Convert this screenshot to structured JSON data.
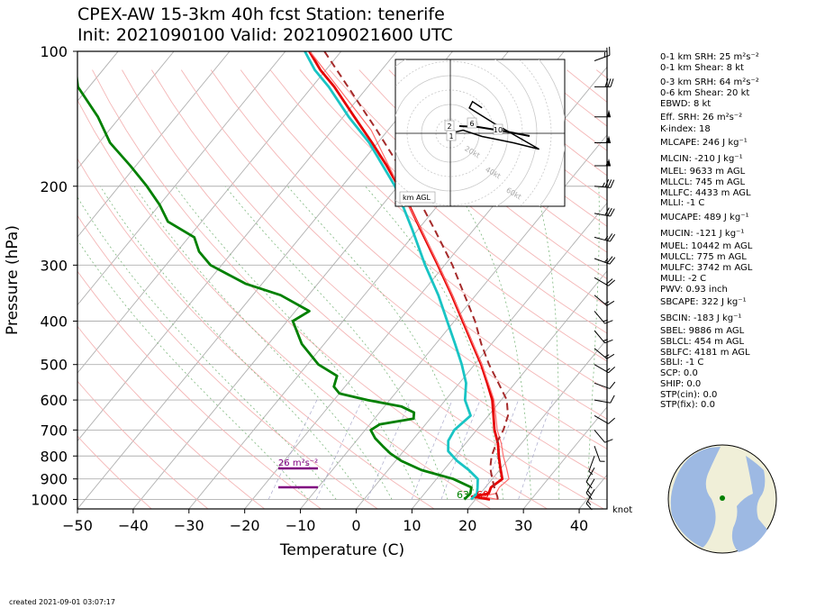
{
  "title_line1": "CPEX-AW 15-3km  40h fcst  Station: tenerife",
  "title_line2": "Init: 2021090100  Valid: 2021090216​00 UTC",
  "created": "created 2021-09-01 03:07:17",
  "chart_data": {
    "type": "line",
    "subtype": "skew-T log-P",
    "xlabel": "Temperature (C)",
    "ylabel": "Pressure (hPa)",
    "xlim": [
      -50,
      45
    ],
    "ylim": [
      1050,
      100
    ],
    "y_scale": "log",
    "x_ticks": [
      "−50",
      "−40",
      "−30",
      "−20",
      "−10",
      "0",
      "10",
      "20",
      "30",
      "40"
    ],
    "y_ticks": [
      "100",
      "200",
      "300",
      "400",
      "500",
      "600",
      "700",
      "800",
      "900",
      "1000"
    ],
    "x_tick_values": [
      -50,
      -40,
      -30,
      -20,
      -10,
      0,
      10,
      20,
      30,
      40
    ],
    "y_tick_values": [
      100,
      200,
      300,
      400,
      500,
      600,
      700,
      800,
      900,
      1000
    ],
    "series": [
      {
        "key": "temp",
        "color": "#e50000",
        "points": [
          [
            1000,
            22.6
          ],
          [
            985,
            19
          ],
          [
            970,
            21.5
          ],
          [
            940,
            21
          ],
          [
            900,
            21.8
          ],
          [
            850,
            19.8
          ],
          [
            800,
            17.8
          ],
          [
            750,
            15.8
          ],
          [
            700,
            13.2
          ],
          [
            650,
            10.9
          ],
          [
            600,
            8.4
          ],
          [
            550,
            5
          ],
          [
            500,
            1.2
          ],
          [
            450,
            -3.4
          ],
          [
            400,
            -8.5
          ],
          [
            350,
            -14.3
          ],
          [
            300,
            -21.2
          ],
          [
            250,
            -29.5
          ],
          [
            220,
            -35.3
          ],
          [
            200,
            -39.9
          ],
          [
            180,
            -45
          ],
          [
            160,
            -51
          ],
          [
            140,
            -58
          ],
          [
            120,
            -66
          ],
          [
            110,
            -71
          ],
          [
            100,
            -75.7
          ]
        ]
      },
      {
        "key": "virtual_temp",
        "color": "#ff6f6f",
        "points": [
          [
            1000,
            24
          ],
          [
            985,
            20.6
          ],
          [
            970,
            22.8
          ],
          [
            940,
            22.5
          ],
          [
            900,
            23
          ],
          [
            850,
            20.9
          ],
          [
            800,
            18.6
          ],
          [
            750,
            16.4
          ],
          [
            700,
            13.7
          ],
          [
            650,
            11.3
          ],
          [
            600,
            8.7
          ],
          [
            550,
            5.2
          ],
          [
            500,
            1.3
          ],
          [
            450,
            -3.3
          ],
          [
            400,
            -8.4
          ],
          [
            350,
            -14.2
          ],
          [
            300,
            -21.1
          ],
          [
            250,
            -29.4
          ],
          [
            200,
            -39.8
          ],
          [
            150,
            -53
          ],
          [
            100,
            -75.6
          ]
        ]
      },
      {
        "key": "wetbulb",
        "color": "#19c4c4",
        "points": [
          [
            1000,
            19.2
          ],
          [
            970,
            19.4
          ],
          [
            940,
            18.6
          ],
          [
            900,
            17.4
          ],
          [
            860,
            14.5
          ],
          [
            820,
            11
          ],
          [
            780,
            8
          ],
          [
            740,
            6.5
          ],
          [
            700,
            6
          ],
          [
            650,
            6.8
          ],
          [
            600,
            3.5
          ],
          [
            550,
            1.2
          ],
          [
            500,
            -2.3
          ],
          [
            450,
            -6.5
          ],
          [
            400,
            -11.3
          ],
          [
            350,
            -16.7
          ],
          [
            300,
            -23.5
          ],
          [
            250,
            -31
          ],
          [
            200,
            -40.5
          ],
          [
            160,
            -51.5
          ],
          [
            140,
            -59
          ],
          [
            120,
            -67
          ],
          [
            110,
            -72
          ],
          [
            100,
            -76.5
          ]
        ]
      },
      {
        "key": "dewpoint",
        "color": "#008000",
        "points": [
          [
            1000,
            18
          ],
          [
            970,
            18.2
          ],
          [
            940,
            17.5
          ],
          [
            900,
            13
          ],
          [
            860,
            6
          ],
          [
            820,
            1
          ],
          [
            790,
            -2
          ],
          [
            760,
            -4.5
          ],
          [
            730,
            -7
          ],
          [
            700,
            -9
          ],
          [
            680,
            -8.2
          ],
          [
            660,
            -3
          ],
          [
            640,
            -3.8
          ],
          [
            620,
            -7
          ],
          [
            600,
            -14
          ],
          [
            580,
            -20
          ],
          [
            560,
            -22
          ],
          [
            530,
            -23
          ],
          [
            500,
            -28
          ],
          [
            450,
            -34
          ],
          [
            400,
            -39
          ],
          [
            380,
            -37.5
          ],
          [
            350,
            -45
          ],
          [
            330,
            -53
          ],
          [
            300,
            -62
          ],
          [
            280,
            -66
          ],
          [
            260,
            -69
          ],
          [
            240,
            -76
          ],
          [
            220,
            -80
          ],
          [
            200,
            -85
          ],
          [
            180,
            -91
          ],
          [
            160,
            -98
          ],
          [
            140,
            -104
          ],
          [
            120,
            -112
          ],
          [
            100,
            -118
          ]
        ]
      },
      {
        "key": "parcel",
        "color": "#a52a2a",
        "dashed": true,
        "points": [
          [
            1000,
            24
          ],
          [
            985,
            23.5
          ],
          [
            950,
            22
          ],
          [
            900,
            20
          ],
          [
            850,
            18
          ],
          [
            800,
            16.5
          ],
          [
            750,
            15.5
          ],
          [
            700,
            14.8
          ],
          [
            650,
            13.5
          ],
          [
            600,
            11
          ],
          [
            550,
            7
          ],
          [
            500,
            2.6
          ],
          [
            450,
            -1.8
          ],
          [
            400,
            -6.3
          ],
          [
            350,
            -12
          ],
          [
            300,
            -18.6
          ],
          [
            250,
            -27
          ],
          [
            200,
            -37.5
          ],
          [
            150,
            -52
          ],
          [
            100,
            -73
          ]
        ]
      }
    ],
    "annotations": {
      "srh_label": "26 m²s⁻²",
      "td_surface": "63",
      "t_surface": "69",
      "wind_unit": "knot",
      "hodo_rings": [
        "20kt",
        "40kt",
        "60kt",
        "80kt"
      ],
      "hodo_heights": [
        "2",
        "6",
        "10",
        "1"
      ],
      "hodo_label": "km AGL"
    },
    "hodograph": [
      [
        0,
        0
      ],
      [
        4,
        1
      ],
      [
        10,
        -1
      ],
      [
        15,
        -2
      ],
      [
        20,
        -3
      ],
      [
        28,
        -5
      ],
      [
        14,
        3
      ],
      [
        6,
        8
      ],
      [
        7,
        10
      ],
      [
        10,
        8
      ]
    ],
    "wind_barbs": [
      {
        "p": 105,
        "spd": 25,
        "dir": 250
      },
      {
        "p": 120,
        "spd": 30,
        "dir": 270
      },
      {
        "p": 140,
        "spd": 50,
        "dir": 270
      },
      {
        "p": 160,
        "spd": 55,
        "dir": 270
      },
      {
        "p": 180,
        "spd": 55,
        "dir": 270
      },
      {
        "p": 200,
        "spd": 35,
        "dir": 275
      },
      {
        "p": 230,
        "spd": 30,
        "dir": 280
      },
      {
        "p": 260,
        "spd": 25,
        "dir": 285
      },
      {
        "p": 290,
        "spd": 25,
        "dir": 290
      },
      {
        "p": 320,
        "spd": 20,
        "dir": 300
      },
      {
        "p": 350,
        "spd": 15,
        "dir": 310
      },
      {
        "p": 380,
        "spd": 15,
        "dir": 320
      },
      {
        "p": 420,
        "spd": 15,
        "dir": 320
      },
      {
        "p": 460,
        "spd": 15,
        "dir": 310
      },
      {
        "p": 500,
        "spd": 15,
        "dir": 300
      },
      {
        "p": 550,
        "spd": 10,
        "dir": 290
      },
      {
        "p": 600,
        "spd": 10,
        "dir": 280
      },
      {
        "p": 650,
        "spd": 10,
        "dir": 300
      },
      {
        "p": 700,
        "spd": 10,
        "dir": 320
      },
      {
        "p": 760,
        "spd": 5,
        "dir": 340
      },
      {
        "p": 800,
        "spd": 5,
        "dir": 20
      },
      {
        "p": 850,
        "spd": 10,
        "dir": 30
      },
      {
        "p": 900,
        "spd": 15,
        "dir": 30
      },
      {
        "p": 950,
        "spd": 15,
        "dir": 30
      }
    ],
    "indices": [
      "0-1 km SRH: 25 m²s⁻²",
      "0-1 km Shear: 8 kt",
      "0-3 km SRH: 64 m²s⁻²",
      "0-6 km Shear: 20 kt",
      "EBWD: 8 kt",
      "Eff. SRH: 26 m²s⁻²",
      "K-index: 18",
      "MLCAPE: 246 J kg⁻¹",
      "MLCIN: -210 J kg⁻¹",
      "MLEL: 9633 m AGL",
      "MLLCL: 745 m AGL",
      "MLLFC: 4433 m AGL",
      "MLLI: -1 C",
      "MUCAPE: 489 J kg⁻¹",
      "MUCIN: -121 J kg⁻¹",
      "MUEL: 10442 m AGL",
      "MULCL: 775 m AGL",
      "MULFC: 3742 m AGL",
      "MULI: -2 C",
      "PWV: 0.93 inch",
      "SBCAPE: 322 J kg⁻¹",
      "SBCIN: -183 J kg⁻¹",
      "SBEL: 9886 m AGL",
      "SBLCL: 454 m AGL",
      "SBLFC: 4181 m AGL",
      "SBLI: -1 C",
      "SCP: 0.0",
      "SHIP: 0.0",
      "STP(cin): 0.0",
      "STP(fix): 0.0"
    ]
  }
}
